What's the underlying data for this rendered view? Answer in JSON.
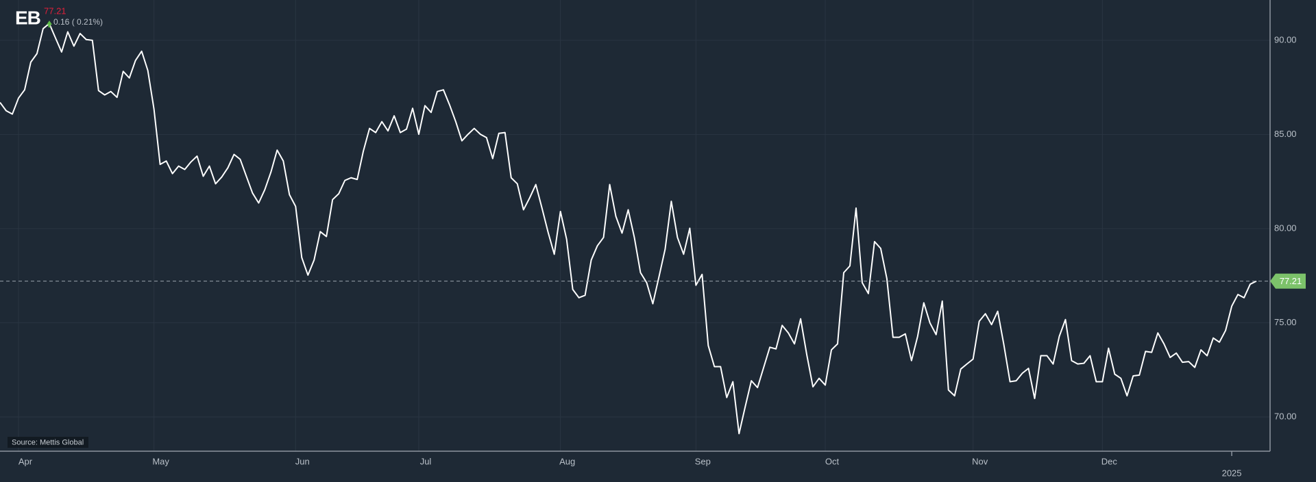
{
  "header": {
    "ticker": "EB",
    "price": "77.21",
    "change": "0.16 ( 0.21%)"
  },
  "source": "Source: Mettis Global",
  "chart_data": {
    "type": "line",
    "categories": [
      null,
      null,
      null,
      "Apr",
      null,
      null,
      null,
      null,
      null,
      null,
      null,
      null,
      null,
      null,
      null,
      null,
      null,
      null,
      null,
      null,
      null,
      null,
      null,
      null,
      null,
      "May",
      null,
      null,
      null,
      null,
      null,
      null,
      null,
      null,
      null,
      null,
      null,
      null,
      null,
      null,
      null,
      null,
      null,
      null,
      null,
      null,
      null,
      null,
      "Jun",
      null,
      null,
      null,
      null,
      null,
      null,
      null,
      null,
      null,
      null,
      null,
      null,
      null,
      null,
      null,
      null,
      null,
      null,
      null,
      "Jul",
      null,
      null,
      null,
      null,
      null,
      null,
      null,
      null,
      null,
      null,
      null,
      null,
      null,
      null,
      null,
      null,
      null,
      null,
      null,
      null,
      null,
      null,
      "Aug",
      null,
      null,
      null,
      null,
      null,
      null,
      null,
      null,
      null,
      null,
      null,
      null,
      null,
      null,
      null,
      null,
      null,
      null,
      null,
      null,
      null,
      "Sep",
      null,
      null,
      null,
      null,
      null,
      null,
      null,
      null,
      null,
      null,
      null,
      null,
      null,
      null,
      null,
      null,
      null,
      null,
      null,
      null,
      "Oct",
      null,
      null,
      null,
      null,
      null,
      null,
      null,
      null,
      null,
      null,
      null,
      null,
      null,
      null,
      null,
      null,
      null,
      null,
      null,
      null,
      null,
      null,
      null,
      "Nov",
      null,
      null,
      null,
      null,
      null,
      null,
      null,
      null,
      null,
      null,
      null,
      null,
      null,
      null,
      null,
      null,
      null,
      null,
      null,
      null,
      "Dec",
      null,
      null,
      null,
      null,
      null,
      null,
      null,
      null,
      null,
      null,
      null,
      null,
      null,
      null,
      null,
      null,
      null,
      null,
      null,
      null,
      null,
      null,
      null,
      null,
      null
    ],
    "year_categories": [
      null,
      null,
      null,
      null,
      null,
      null,
      null,
      null,
      null,
      null,
      null,
      null,
      null,
      null,
      null,
      null,
      null,
      null,
      null,
      null,
      null,
      null,
      null,
      null,
      null,
      null,
      null,
      null,
      null,
      null,
      null,
      null,
      null,
      null,
      null,
      null,
      null,
      null,
      null,
      null,
      null,
      null,
      null,
      null,
      null,
      null,
      null,
      null,
      null,
      null,
      null,
      null,
      null,
      null,
      null,
      null,
      null,
      null,
      null,
      null,
      null,
      null,
      null,
      null,
      null,
      null,
      null,
      null,
      null,
      null,
      null,
      null,
      null,
      null,
      null,
      null,
      null,
      null,
      null,
      null,
      null,
      null,
      null,
      null,
      null,
      null,
      null,
      null,
      null,
      null,
      null,
      null,
      null,
      null,
      null,
      null,
      null,
      null,
      null,
      null,
      null,
      null,
      null,
      null,
      null,
      null,
      null,
      null,
      null,
      null,
      null,
      null,
      null,
      null,
      null,
      null,
      null,
      null,
      null,
      null,
      null,
      null,
      null,
      null,
      null,
      null,
      null,
      null,
      null,
      null,
      null,
      null,
      null,
      null,
      null,
      null,
      null,
      null,
      null,
      null,
      null,
      null,
      null,
      null,
      null,
      null,
      null,
      null,
      null,
      null,
      null,
      null,
      null,
      null,
      null,
      null,
      null,
      null,
      null,
      null,
      null,
      null,
      null,
      null,
      null,
      null,
      null,
      null,
      null,
      null,
      null,
      null,
      null,
      null,
      null,
      null,
      null,
      null,
      null,
      null,
      null,
      null,
      null,
      null,
      null,
      null,
      null,
      null,
      null,
      null,
      null,
      null,
      null,
      null,
      null,
      null,
      null,
      null,
      null,
      null,
      "2025",
      null,
      null,
      null,
      null
    ],
    "series": [
      {
        "color": "#ffffff",
        "values": [
          86.7,
          86.26,
          86.08,
          86.93,
          87.37,
          88.84,
          89.29,
          90.62,
          90.89,
          90.13,
          89.38,
          90.45,
          89.69,
          90.36,
          90.04,
          90.0,
          87.33,
          87.1,
          87.28,
          86.97,
          88.35,
          88.0,
          88.93,
          89.42,
          88.4,
          86.35,
          83.41,
          83.59,
          82.92,
          83.32,
          83.14,
          83.54,
          83.85,
          82.78,
          83.32,
          82.38,
          82.74,
          83.23,
          83.94,
          83.68,
          82.78,
          81.89,
          81.36,
          82.07,
          83.01,
          84.17,
          83.59,
          81.8,
          81.18,
          78.46,
          77.53,
          78.33,
          79.84,
          79.58,
          81.54,
          81.85,
          82.56,
          82.7,
          82.61,
          84.12,
          85.32,
          85.1,
          85.68,
          85.19,
          85.99,
          85.1,
          85.28,
          86.39,
          85.01,
          86.53,
          86.17,
          87.28,
          87.37,
          86.57,
          85.68,
          84.66,
          85.01,
          85.32,
          85.01,
          84.83,
          83.72,
          85.06,
          85.1,
          82.7,
          82.38,
          81.0,
          81.63,
          82.34,
          81.09,
          79.8,
          78.64,
          80.91,
          79.44,
          76.77,
          76.33,
          76.46,
          78.33,
          79.09,
          79.53,
          82.34,
          80.65,
          79.76,
          81.0,
          79.53,
          77.66,
          77.13,
          76.01,
          77.44,
          78.91,
          81.45,
          79.53,
          78.64,
          80.02,
          76.99,
          77.57,
          73.79,
          72.67,
          72.67,
          71.03,
          71.87,
          69.11,
          70.54,
          71.92,
          71.56,
          72.63,
          73.7,
          73.61,
          74.86,
          74.46,
          73.88,
          75.21,
          73.3,
          71.6,
          72.05,
          71.69,
          73.56,
          73.88,
          77.66,
          78.02,
          81.09,
          77.13,
          76.55,
          79.31,
          78.95,
          77.35,
          74.23,
          74.23,
          74.41,
          72.99,
          74.28,
          76.06,
          74.99,
          74.37,
          76.15,
          71.43,
          71.12,
          72.54,
          72.81,
          73.07,
          75.08,
          75.48,
          74.9,
          75.61,
          73.83,
          71.87,
          71.92,
          72.32,
          72.58,
          70.98,
          73.25,
          73.25,
          72.81,
          74.28,
          75.17,
          72.99,
          72.81,
          72.85,
          73.25,
          71.87,
          71.87,
          73.65,
          72.27,
          72.05,
          71.12,
          72.18,
          72.22,
          73.48,
          73.43,
          74.46,
          73.88,
          73.16,
          73.39,
          72.9,
          72.94,
          72.63,
          73.56,
          73.25,
          74.19,
          73.97,
          74.59,
          75.88,
          76.5,
          76.33,
          77.05,
          77.21
        ]
      }
    ],
    "ylim": [
      68.18,
      92.14
    ],
    "yticks": [
      {
        "value": 70,
        "label": "70.00"
      },
      {
        "value": 75,
        "label": "75.00"
      },
      {
        "value": 80,
        "label": "80.00"
      },
      {
        "value": 85,
        "label": "85.00"
      },
      {
        "value": 90,
        "label": "90.00"
      }
    ],
    "grid": true,
    "last_value_marker": true,
    "last_value_color": "#7cc26a"
  }
}
